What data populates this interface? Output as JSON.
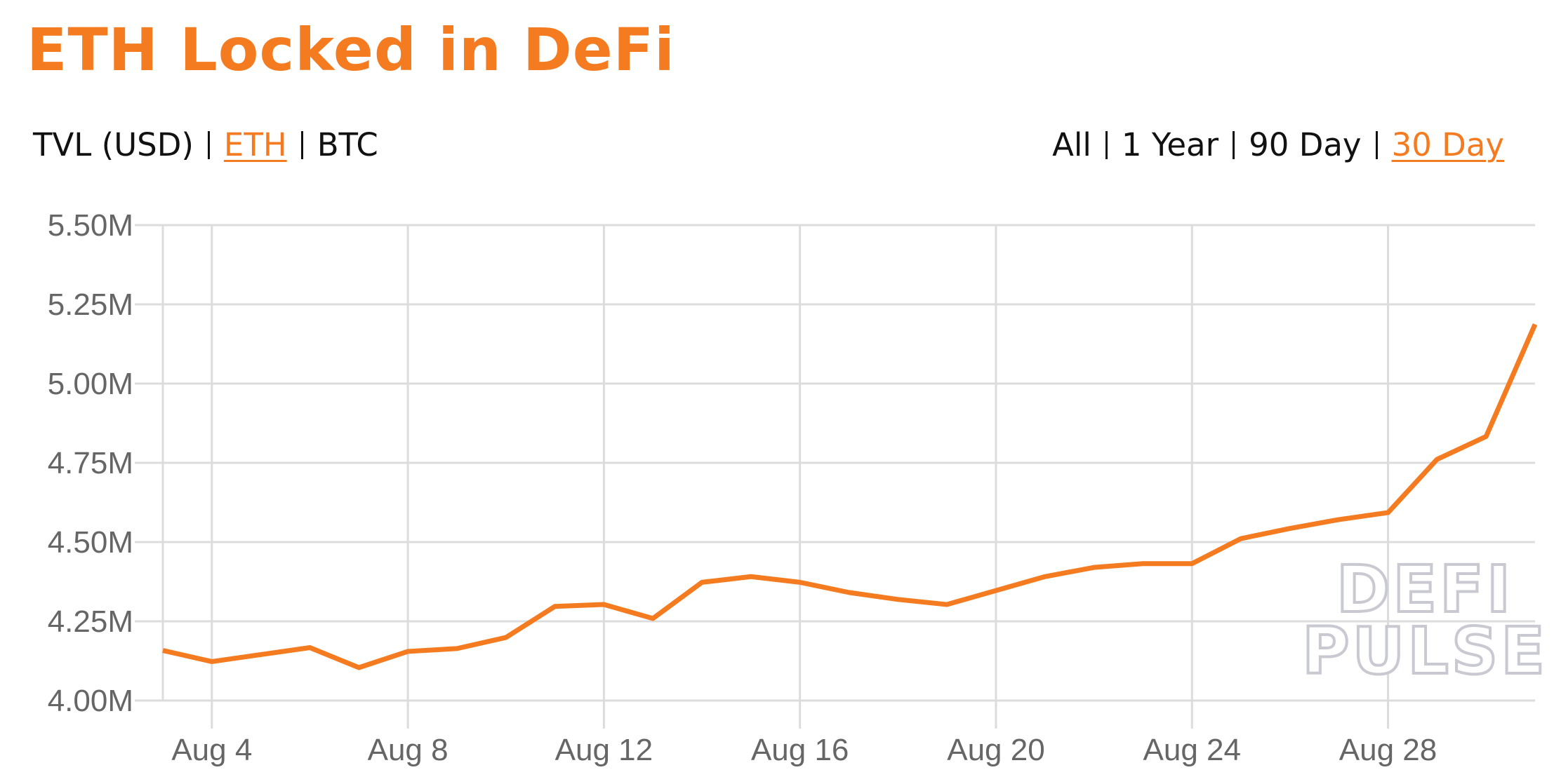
{
  "chart_data": {
    "type": "line",
    "title": "ETH Locked in DeFi",
    "unit_options": [
      "TVL (USD)",
      "ETH",
      "BTC"
    ],
    "active_unit": 1,
    "range_options": [
      "All",
      "1 Year",
      "90 Day",
      "30 Day"
    ],
    "active_range": 3,
    "watermark": [
      "DEFI",
      "PULSE"
    ],
    "x": [
      3,
      4,
      5,
      6,
      7,
      8,
      9,
      10,
      11,
      12,
      13,
      14,
      15,
      16,
      17,
      18,
      19,
      20,
      21,
      22,
      23,
      24,
      25,
      26,
      27,
      28,
      29,
      30,
      31
    ],
    "series": [
      {
        "name": "ETH",
        "color": "#f47b20",
        "values": [
          4.158,
          4.123,
          4.145,
          4.167,
          4.104,
          4.155,
          4.164,
          4.199,
          4.297,
          4.303,
          4.259,
          4.373,
          4.391,
          4.373,
          4.341,
          4.319,
          4.303,
          4.347,
          4.391,
          4.42,
          4.432,
          4.432,
          4.511,
          4.543,
          4.571,
          4.593,
          4.761,
          4.833,
          5.187
        ]
      }
    ],
    "xlim": [
      3,
      31
    ],
    "xticks": [
      {
        "value": 4,
        "label": "Aug 4"
      },
      {
        "value": 8,
        "label": "Aug 8"
      },
      {
        "value": 12,
        "label": "Aug 12"
      },
      {
        "value": 16,
        "label": "Aug 16"
      },
      {
        "value": 20,
        "label": "Aug 20"
      },
      {
        "value": 24,
        "label": "Aug 24"
      },
      {
        "value": 28,
        "label": "Aug 28"
      }
    ],
    "ylim": [
      4.0,
      5.5
    ],
    "yticks": [
      {
        "value": 4.0,
        "label": "4.00M"
      },
      {
        "value": 4.25,
        "label": "4.25M"
      },
      {
        "value": 4.5,
        "label": "4.50M"
      },
      {
        "value": 4.75,
        "label": "4.75M"
      },
      {
        "value": 5.0,
        "label": "5.00M"
      },
      {
        "value": 5.25,
        "label": "5.25M"
      },
      {
        "value": 5.5,
        "label": "5.50M"
      }
    ],
    "grid": true
  }
}
